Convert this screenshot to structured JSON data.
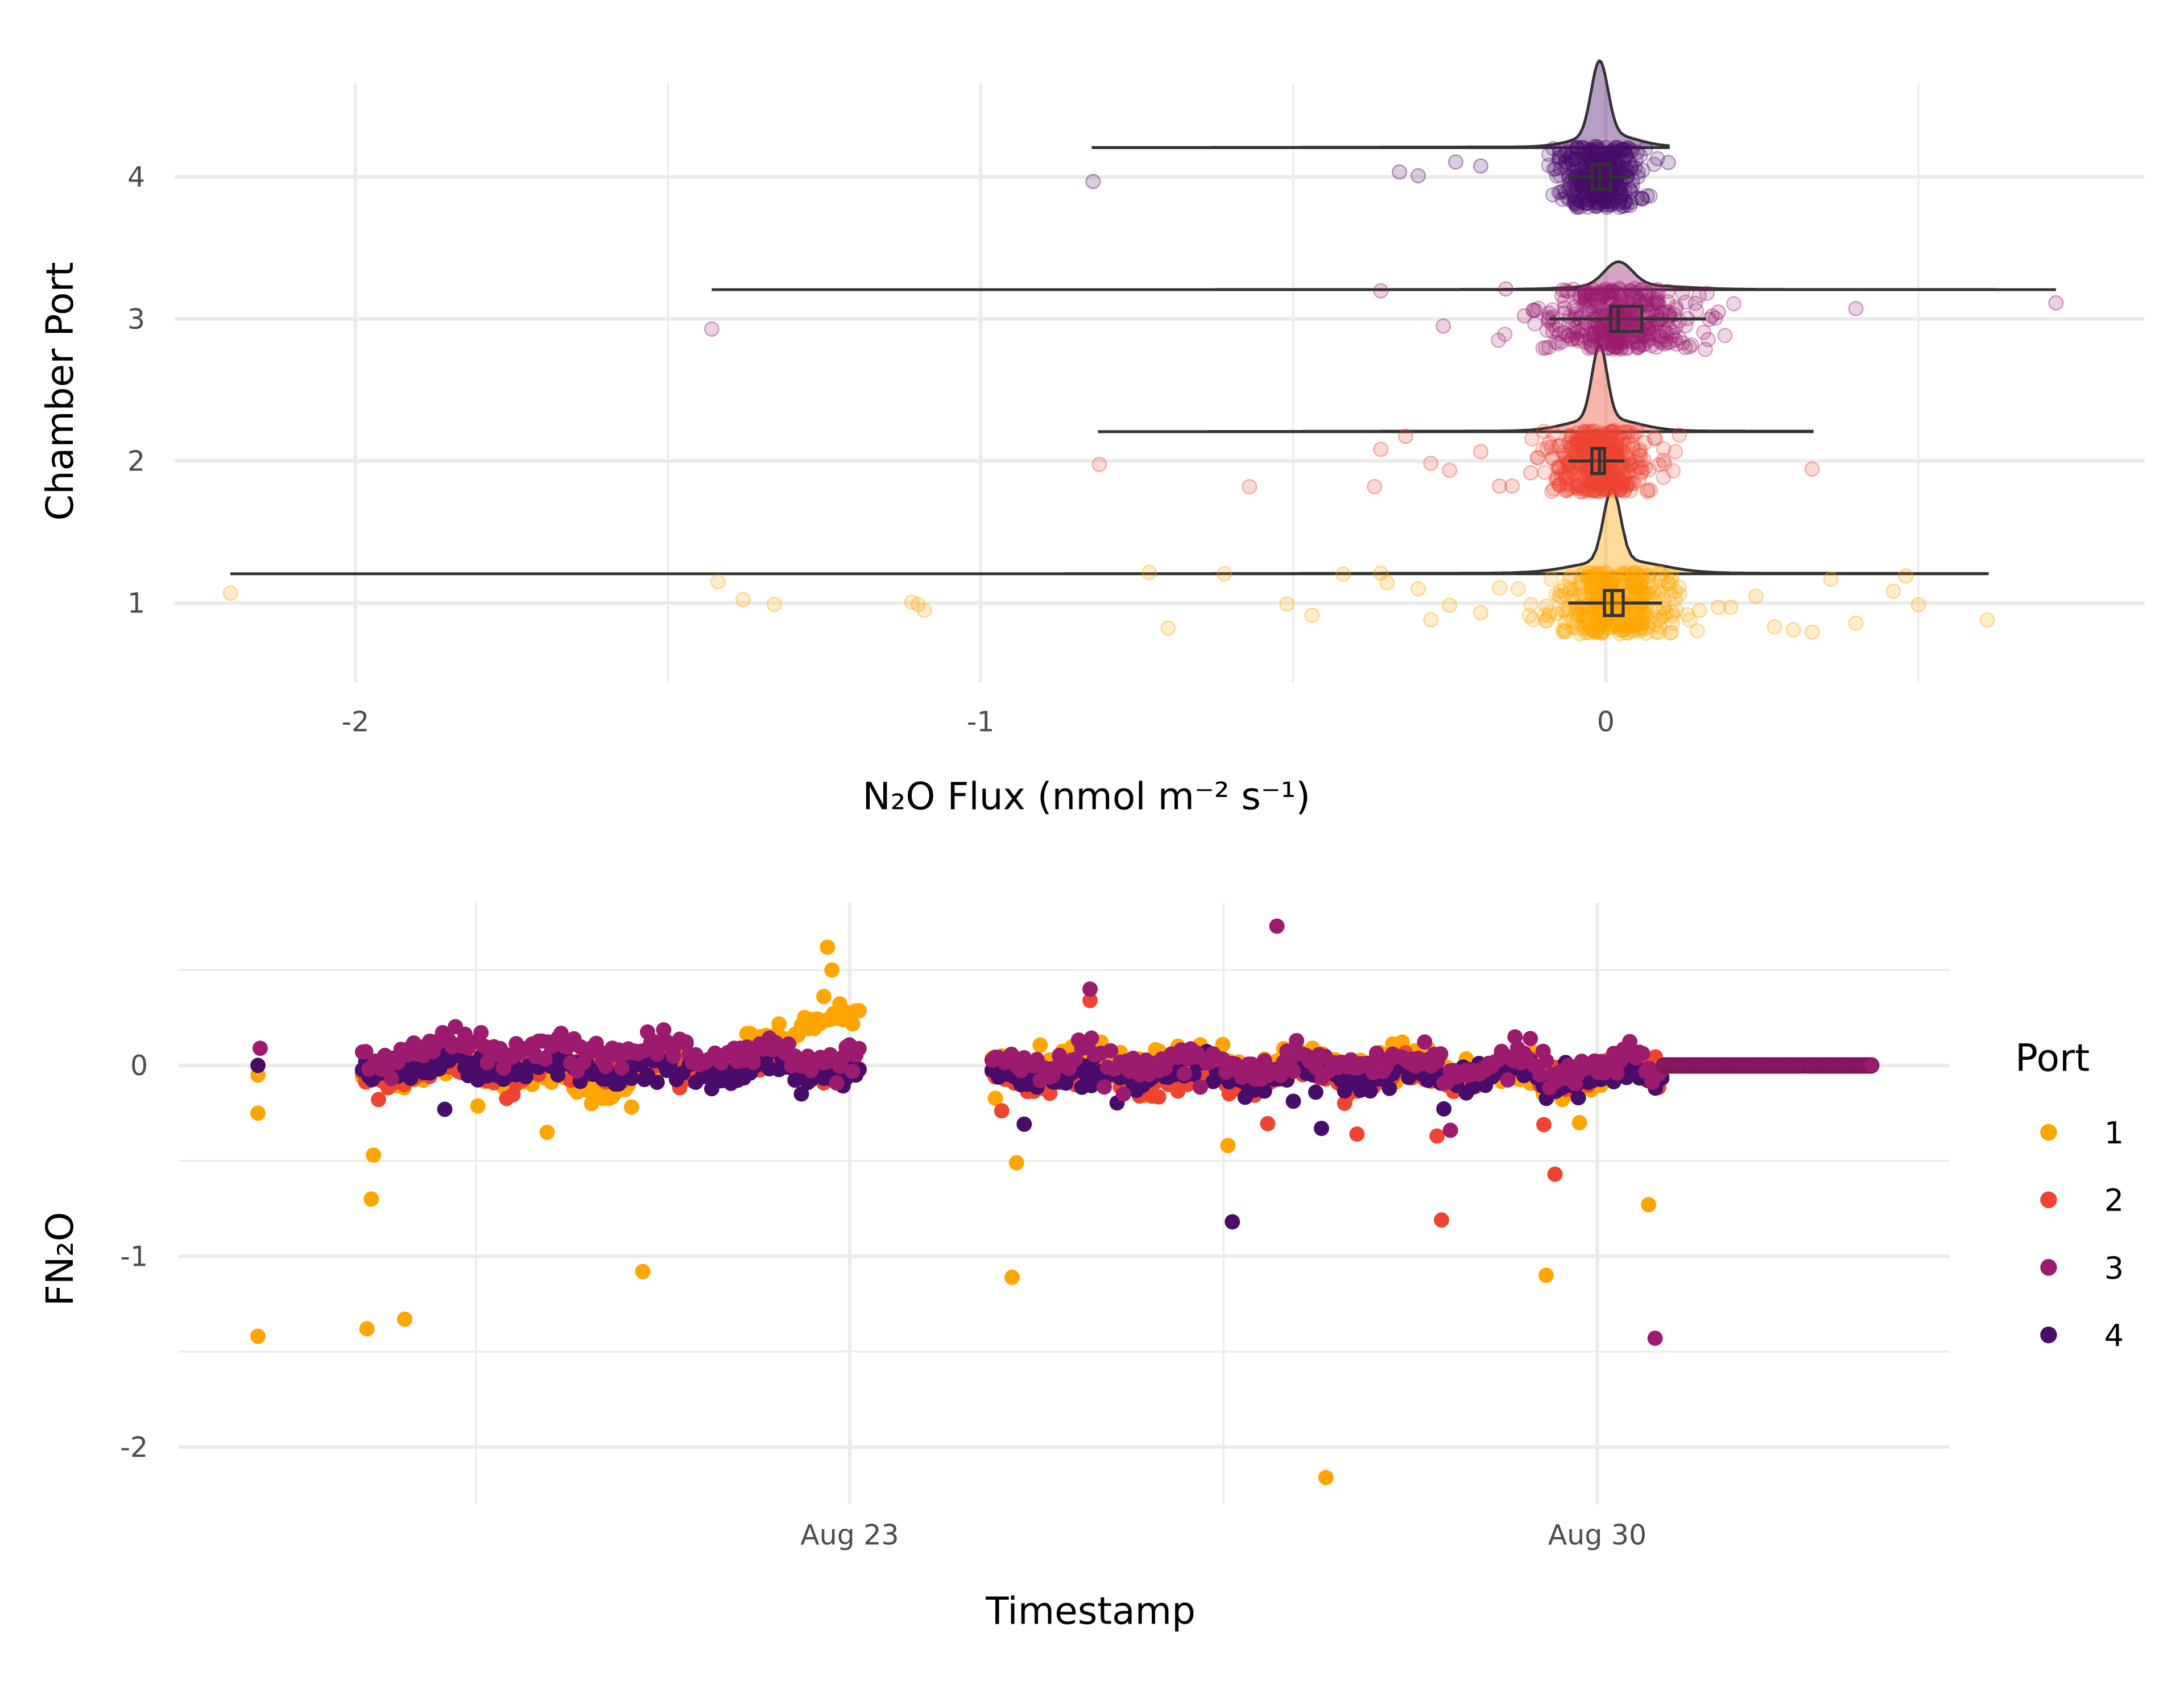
{
  "colors": {
    "1": "#FFA500",
    "2": "#EF4530",
    "3": "#9C1B6E",
    "4": "#4A0C6B",
    "box": "#333333"
  },
  "chart_data": [
    {
      "type": "raincloud",
      "orientation": "horizontal",
      "xlabel": "N₂O Flux (nmol m⁻² s⁻¹)",
      "ylabel": "Chamber Port",
      "xlim": [
        -2.22,
        0.86
      ],
      "x_ticks": [
        -2,
        -1,
        0
      ],
      "x_tick_labels": [
        "-2",
        "-1",
        "0"
      ],
      "categories": [
        "1",
        "2",
        "3",
        "4"
      ],
      "grid": true,
      "series": [
        {
          "port": "1",
          "min": -2.2,
          "max": 0.61,
          "q1": 0.0,
          "median": 0.01,
          "q3": 0.03,
          "whisker_low": -0.06,
          "whisker_high": 0.09,
          "spread": 0.05,
          "outliers": [
            -2.2,
            -1.42,
            -1.38,
            -1.33,
            -1.11,
            -1.1,
            -1.09,
            -0.73,
            -0.7,
            -0.61,
            -0.51,
            -0.47,
            -0.42,
            -0.36,
            -0.35,
            -0.3,
            -0.28,
            -0.25,
            -0.2,
            -0.17,
            0.15,
            0.18,
            0.2,
            0.24,
            0.27,
            0.3,
            0.33,
            0.36,
            0.4,
            0.46,
            0.48,
            0.5,
            0.61
          ]
        },
        {
          "port": "2",
          "min": -0.81,
          "max": 0.33,
          "q1": -0.02,
          "median": -0.01,
          "q3": 0.0,
          "whisker_low": -0.06,
          "whisker_high": 0.03,
          "spread": 0.04,
          "outliers": [
            -0.81,
            -0.57,
            -0.37,
            -0.36,
            -0.32,
            -0.28,
            -0.25,
            -0.2,
            -0.17,
            -0.15,
            -0.12,
            0.33
          ]
        },
        {
          "port": "3",
          "min": -1.43,
          "max": 0.72,
          "q1": 0.01,
          "median": 0.02,
          "q3": 0.06,
          "whisker_low": -0.09,
          "whisker_high": 0.16,
          "spread": 0.06,
          "outliers": [
            -1.43,
            -0.36,
            -0.26,
            -0.16,
            -0.13,
            0.17,
            0.18,
            0.4,
            0.72
          ]
        },
        {
          "port": "4",
          "min": -0.82,
          "max": 0.1,
          "q1": -0.02,
          "median": -0.01,
          "q3": 0.01,
          "whisker_low": -0.06,
          "whisker_high": 0.04,
          "spread": 0.035,
          "outliers": [
            -0.82,
            -0.33,
            -0.3,
            -0.24,
            -0.2,
            0.1
          ]
        }
      ]
    },
    {
      "type": "scatter",
      "xlabel": "Timestamp",
      "ylabel": "FN₂O",
      "x_ticks": [
        "Aug 23",
        "Aug 30"
      ],
      "xlim": [
        "Aug 16 17:00",
        "Sep 2 07:00"
      ],
      "ylim": [
        -2.25,
        0.92
      ],
      "y_ticks": [
        0,
        -1,
        -2
      ],
      "y_tick_labels": [
        "0",
        "-1",
        "-2"
      ],
      "grid": true,
      "legend": {
        "title": "Port",
        "position": "right",
        "entries": [
          "1",
          "2",
          "3",
          "4"
        ]
      },
      "segments": [
        {
          "start": "Aug 18 10:30",
          "end": "Aug 23 02:30"
        },
        {
          "start": "Aug 24 08:00",
          "end": "Aug 30 15:00"
        }
      ],
      "trend": {
        "1": [
          [
            "Aug 18 10:30",
            -0.05
          ],
          [
            "Aug 19 12:00",
            0.0
          ],
          [
            "Aug 20 12:00",
            -0.1
          ],
          [
            "Aug 21 12:00",
            0.0
          ],
          [
            "Aug 22 06:00",
            0.1
          ],
          [
            "Aug 22 18:00",
            0.3
          ],
          [
            "Aug 23 02:30",
            0.25
          ],
          [
            "Aug 24 08:00",
            0.0
          ],
          [
            "Aug 25 00:00",
            0.05
          ],
          [
            "Aug 27 00:00",
            0.0
          ],
          [
            "Aug 28 06:00",
            0.05
          ],
          [
            "Aug 29 12:00",
            -0.1
          ],
          [
            "Aug 30 15:00",
            0.0
          ]
        ],
        "2": [
          [
            "Aug 18 10:30",
            -0.03
          ],
          [
            "Aug 23 02:30",
            0.0
          ],
          [
            "Aug 24 08:00",
            -0.08
          ],
          [
            "Aug 30 15:00",
            -0.04
          ]
        ],
        "3": [
          [
            "Aug 18 10:30",
            0.05
          ],
          [
            "Aug 19 00:00",
            0.1
          ],
          [
            "Aug 21 12:00",
            0.08
          ],
          [
            "Aug 23 02:30",
            0.05
          ],
          [
            "Aug 24 08:00",
            0.02
          ],
          [
            "Aug 30 15:00",
            0.0
          ]
        ],
        "4": [
          [
            "Aug 18 10:30",
            0.0
          ],
          [
            "Aug 23 02:30",
            -0.02
          ],
          [
            "Aug 24 08:00",
            -0.05
          ],
          [
            "Aug 30 15:00",
            -0.05
          ]
        ]
      },
      "flat_tail": {
        "port": "3",
        "start": "Aug 30 15:00",
        "end": "Sep 1 14:00",
        "value": 0
      },
      "outliers": [
        {
          "port": "1",
          "t": "Aug 17 11:00",
          "v": -1.42
        },
        {
          "port": "1",
          "t": "Aug 17 11:00",
          "v": -0.25
        },
        {
          "port": "1",
          "t": "Aug 17 11:00",
          "v": -0.05
        },
        {
          "port": "3",
          "t": "Aug 17 11:30",
          "v": 0.09
        },
        {
          "port": "4",
          "t": "Aug 17 11:00",
          "v": 0.0
        },
        {
          "port": "1",
          "t": "Aug 18 11:30",
          "v": -1.38
        },
        {
          "port": "1",
          "t": "Aug 18 12:30",
          "v": -0.7
        },
        {
          "port": "1",
          "t": "Aug 18 13:00",
          "v": -0.47
        },
        {
          "port": "1",
          "t": "Aug 18 20:00",
          "v": -1.33
        },
        {
          "port": "1",
          "t": "Aug 21 01:30",
          "v": -1.08
        },
        {
          "port": "1",
          "t": "Aug 20 04:00",
          "v": -0.35
        },
        {
          "port": "1",
          "t": "Aug 20 14:00",
          "v": -0.2
        },
        {
          "port": "1",
          "t": "Aug 22 19:00",
          "v": 0.62
        },
        {
          "port": "1",
          "t": "Aug 22 20:00",
          "v": 0.5
        },
        {
          "port": "4",
          "t": "Aug 19 05:00",
          "v": -0.23
        },
        {
          "port": "1",
          "t": "Aug 24 12:30",
          "v": -1.11
        },
        {
          "port": "1",
          "t": "Aug 24 13:30",
          "v": -0.51
        },
        {
          "port": "3",
          "t": "Aug 25 06:00",
          "v": 0.4
        },
        {
          "port": "2",
          "t": "Aug 25 06:00",
          "v": 0.34
        },
        {
          "port": "1",
          "t": "Aug 26 13:00",
          "v": -0.42
        },
        {
          "port": "4",
          "t": "Aug 26 14:00",
          "v": -0.82
        },
        {
          "port": "3",
          "t": "Aug 27 00:00",
          "v": 0.73
        },
        {
          "port": "1",
          "t": "Aug 27 11:00",
          "v": -2.16
        },
        {
          "port": "4",
          "t": "Aug 27 10:00",
          "v": -0.33
        },
        {
          "port": "2",
          "t": "Aug 27 18:00",
          "v": -0.36
        },
        {
          "port": "2",
          "t": "Aug 28 13:00",
          "v": -0.81
        },
        {
          "port": "2",
          "t": "Aug 28 12:00",
          "v": -0.37
        },
        {
          "port": "3",
          "t": "Aug 28 15:00",
          "v": -0.34
        },
        {
          "port": "3",
          "t": "Aug 29 05:30",
          "v": 0.15
        },
        {
          "port": "1",
          "t": "Aug 29 12:30",
          "v": -1.1
        },
        {
          "port": "2",
          "t": "Aug 29 12:00",
          "v": -0.31
        },
        {
          "port": "2",
          "t": "Aug 29 14:30",
          "v": -0.57
        },
        {
          "port": "1",
          "t": "Aug 29 20:00",
          "v": -0.3
        },
        {
          "port": "1",
          "t": "Aug 30 11:30",
          "v": -0.73
        },
        {
          "port": "3",
          "t": "Aug 30 13:00",
          "v": -1.43
        }
      ]
    }
  ]
}
